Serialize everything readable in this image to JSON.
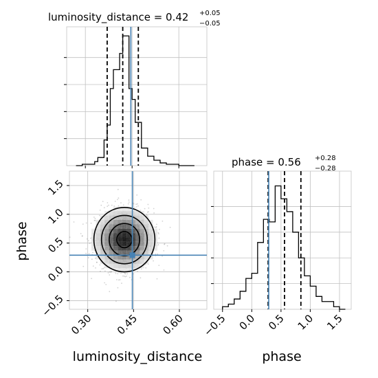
{
  "chart_data": {
    "type": "corner",
    "parameters": [
      "luminosity_distance",
      "phase"
    ],
    "truths": {
      "luminosity_distance": 0.446,
      "phase": 0.29
    },
    "panels": {
      "luminosity_distance_hist": {
        "type": "histogram",
        "title_prefix": "luminosity_distance = 0.42",
        "title_sup": "+0.05",
        "title_sub": "−0.05",
        "quantiles": [
          0.37,
          0.42,
          0.47
        ],
        "truth": 0.446,
        "xlim": [
          0.24,
          0.69
        ],
        "bin_edges": [
          0.27,
          0.28,
          0.29,
          0.3,
          0.31,
          0.32,
          0.33,
          0.34,
          0.35,
          0.36,
          0.37,
          0.38,
          0.39,
          0.4,
          0.41,
          0.42,
          0.43,
          0.44,
          0.45,
          0.46,
          0.47,
          0.48,
          0.49,
          0.5,
          0.51,
          0.52,
          0.53,
          0.54,
          0.55,
          0.56,
          0.57,
          0.58,
          0.59,
          0.6,
          0.61,
          0.62,
          0.63,
          0.64,
          0.65
        ],
        "counts": [
          0,
          0,
          1,
          1,
          1,
          1,
          3,
          6,
          6,
          19,
          30,
          57,
          71,
          71,
          83,
          96,
          96,
          57,
          49,
          32,
          32,
          13,
          13,
          7,
          7,
          4,
          4,
          2,
          2,
          1,
          1,
          1,
          1,
          0,
          0,
          0,
          0,
          0
        ]
      },
      "phase_hist": {
        "type": "histogram",
        "title_prefix": "phase = 0.56",
        "title_sup": "+0.28",
        "title_sub": "−0.28",
        "quantiles": [
          0.28,
          0.56,
          0.84
        ],
        "truth": 0.29,
        "xlim": [
          -0.65,
          1.7
        ],
        "bin_edges": [
          -0.5,
          -0.4,
          -0.3,
          -0.2,
          -0.1,
          0.0,
          0.1,
          0.2,
          0.3,
          0.4,
          0.5,
          0.6,
          0.7,
          0.8,
          0.9,
          1.0,
          1.1,
          1.2,
          1.3,
          1.4,
          1.5,
          1.6
        ],
        "counts": [
          1,
          2,
          4,
          7,
          12,
          14,
          26,
          35,
          34,
          48,
          43,
          38,
          30,
          20,
          13,
          9,
          5,
          3,
          3,
          1,
          0
        ],
        "xticks": [
          "−0.5",
          "0.0",
          "0.5",
          "1.0",
          "1.5"
        ],
        "xlabel": "phase"
      },
      "joint": {
        "type": "scatter+contour",
        "xlim": [
          0.24,
          0.69
        ],
        "ylim": [
          -0.65,
          1.75
        ],
        "xticks": [
          "0.30",
          "0.45",
          "0.60"
        ],
        "yticks": [
          "−0.5",
          "0.0",
          "0.5",
          "1.0",
          "1.5"
        ],
        "xlabel": "luminosity_distance",
        "ylabel": "phase",
        "density_center": [
          0.42,
          0.56
        ],
        "density_sigma": [
          0.05,
          0.28
        ],
        "truth_point": [
          0.446,
          0.29
        ]
      }
    },
    "colors": {
      "truth": "#4682b4",
      "hist": "#000000",
      "grid": "#c0c0c0",
      "points": "#7f7f7f"
    }
  }
}
